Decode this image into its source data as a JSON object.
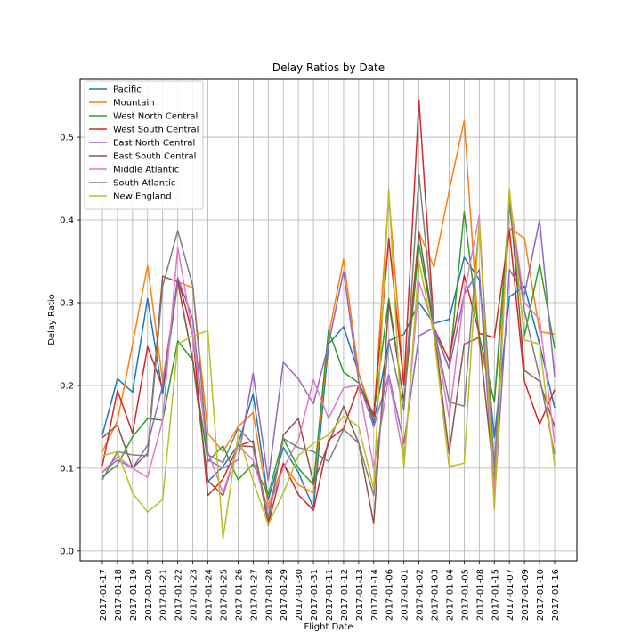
{
  "chart_data": {
    "type": "line",
    "title": "Delay Ratios by Date",
    "xlabel": "Flight Date",
    "ylabel": "Delay Ratio",
    "grid": true,
    "legend_position": "top-left",
    "ylim": [
      -0.012,
      0.57
    ],
    "yticks": [
      "0.0",
      "0.1",
      "0.2",
      "0.3",
      "0.4",
      "0.5"
    ],
    "categories": [
      "2017-01-17",
      "2017-01-18",
      "2017-01-19",
      "2017-01-20",
      "2017-01-21",
      "2017-01-22",
      "2017-01-23",
      "2017-01-24",
      "2017-01-25",
      "2017-01-26",
      "2017-01-27",
      "2017-01-28",
      "2017-01-29",
      "2017-01-30",
      "2017-01-31",
      "2017-01-11",
      "2017-01-12",
      "2017-01-13",
      "2017-01-14",
      "2017-01-06",
      "2017-01-01",
      "2017-01-02",
      "2017-01-03",
      "2017-01-04",
      "2017-01-05",
      "2017-01-08",
      "2017-01-15",
      "2017-01-07",
      "2017-01-09",
      "2017-01-10",
      "2017-01-16"
    ],
    "series": [
      {
        "name": "Pacific",
        "color": "#1f77b4",
        "values": [
          0.14,
          0.208,
          0.192,
          0.305,
          0.19,
          0.325,
          0.23,
          0.084,
          0.102,
          0.128,
          0.19,
          0.062,
          0.125,
          0.095,
          0.052,
          0.25,
          0.271,
          0.215,
          0.155,
          0.254,
          0.262,
          0.3,
          0.275,
          0.28,
          0.355,
          0.328,
          0.137,
          0.307,
          0.32,
          0.25,
          0.173
        ]
      },
      {
        "name": "Mountain",
        "color": "#ff7f0e",
        "values": [
          0.12,
          0.157,
          0.25,
          0.345,
          0.205,
          0.325,
          0.318,
          0.142,
          0.12,
          0.15,
          0.167,
          0.055,
          0.105,
          0.08,
          0.07,
          0.26,
          0.353,
          0.215,
          0.16,
          0.43,
          0.2,
          0.385,
          0.343,
          0.435,
          0.52,
          0.25,
          0.18,
          0.39,
          0.378,
          0.265,
          0.262
        ]
      },
      {
        "name": "West North Central",
        "color": "#2ca02c",
        "values": [
          0.09,
          0.104,
          0.138,
          0.16,
          0.158,
          0.254,
          0.23,
          0.108,
          0.127,
          0.086,
          0.105,
          0.068,
          0.136,
          0.1,
          0.08,
          0.267,
          0.216,
          0.203,
          0.165,
          0.305,
          0.18,
          0.37,
          0.268,
          0.22,
          0.41,
          0.26,
          0.18,
          0.42,
          0.26,
          0.347,
          0.245
        ]
      },
      {
        "name": "West South Central",
        "color": "#d62728",
        "values": [
          0.103,
          0.194,
          0.142,
          0.247,
          0.197,
          0.33,
          0.26,
          0.067,
          0.087,
          0.127,
          0.133,
          0.031,
          0.106,
          0.068,
          0.049,
          0.134,
          0.148,
          0.2,
          0.163,
          0.378,
          0.2,
          0.545,
          0.27,
          0.23,
          0.333,
          0.263,
          0.258,
          0.388,
          0.205,
          0.153,
          0.195
        ]
      },
      {
        "name": "East North Central",
        "color": "#9467bd",
        "values": [
          0.095,
          0.11,
          0.1,
          0.128,
          0.2,
          0.33,
          0.28,
          0.11,
          0.1,
          0.11,
          0.215,
          0.085,
          0.228,
          0.208,
          0.178,
          0.25,
          0.338,
          0.205,
          0.15,
          0.213,
          0.13,
          0.26,
          0.27,
          0.22,
          0.31,
          0.34,
          0.06,
          0.34,
          0.31,
          0.4,
          0.21
        ]
      },
      {
        "name": "East South Central",
        "color": "#8c564b",
        "values": [
          0.137,
          0.152,
          0.1,
          0.118,
          0.332,
          0.325,
          0.23,
          0.085,
          0.067,
          0.127,
          0.126,
          0.035,
          0.14,
          0.16,
          0.082,
          0.13,
          0.175,
          0.13,
          0.033,
          0.3,
          0.18,
          0.385,
          0.27,
          0.118,
          0.25,
          0.258,
          0.083,
          0.43,
          0.218,
          0.205,
          0.15
        ]
      },
      {
        "name": "Middle Atlantic",
        "color": "#e377c2",
        "values": [
          0.095,
          0.114,
          0.1,
          0.089,
          0.158,
          0.367,
          0.26,
          0.12,
          0.07,
          0.127,
          0.11,
          0.05,
          0.1,
          0.134,
          0.207,
          0.16,
          0.197,
          0.2,
          0.1,
          0.21,
          0.11,
          0.325,
          0.27,
          0.16,
          0.31,
          0.405,
          0.07,
          0.43,
          0.3,
          0.28,
          0.13
        ]
      },
      {
        "name": "South Atlantic",
        "color": "#7f7f7f",
        "values": [
          0.086,
          0.12,
          0.116,
          0.115,
          0.32,
          0.387,
          0.32,
          0.116,
          0.107,
          0.148,
          0.13,
          0.04,
          0.136,
          0.125,
          0.12,
          0.108,
          0.147,
          0.13,
          0.067,
          0.254,
          0.17,
          0.455,
          0.27,
          0.18,
          0.175,
          0.396,
          0.1,
          0.42,
          0.29,
          0.21,
          0.117
        ]
      },
      {
        "name": "New England",
        "color": "#bcbd22",
        "values": [
          0.115,
          0.12,
          0.07,
          0.047,
          0.062,
          0.25,
          0.26,
          0.266,
          0.015,
          0.14,
          0.085,
          0.032,
          0.07,
          0.115,
          0.13,
          0.14,
          0.163,
          0.15,
          0.075,
          0.437,
          0.1,
          0.35,
          0.26,
          0.102,
          0.106,
          0.397,
          0.05,
          0.438,
          0.255,
          0.25,
          0.103
        ]
      }
    ]
  }
}
